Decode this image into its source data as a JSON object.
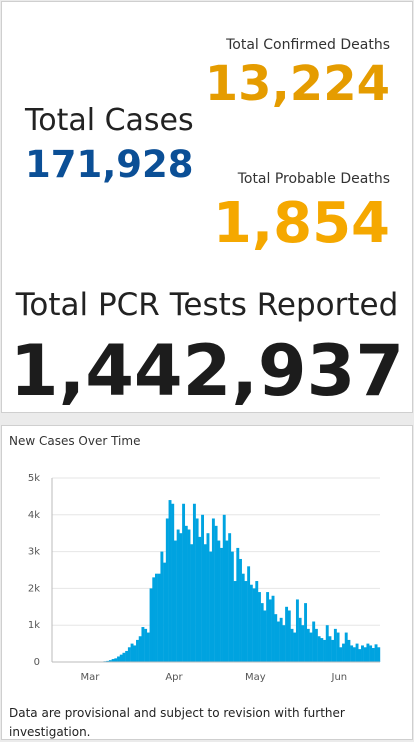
{
  "stats": {
    "confirmed_deaths_label": "Total Confirmed Deaths",
    "confirmed_deaths": "13,224",
    "cases_label": "Total Cases",
    "cases": "171,928",
    "probable_deaths_label": "Total Probable Deaths",
    "probable_deaths": "1,854",
    "tests_label": "Total PCR Tests Reported",
    "tests": "1,442,937"
  },
  "chart_data": {
    "type": "bar",
    "title": "New Cases Over Time",
    "color": "#00a3e0",
    "categories": [
      null,
      null,
      null,
      null,
      null,
      null,
      null,
      null,
      null,
      null,
      null,
      null,
      null,
      null,
      "Mar",
      null,
      null,
      null,
      null,
      null,
      null,
      null,
      null,
      null,
      null,
      null,
      null,
      null,
      null,
      null,
      null,
      null,
      null,
      null,
      null,
      null,
      null,
      null,
      null,
      null,
      null,
      null,
      null,
      null,
      null,
      "Apr",
      null,
      null,
      null,
      null,
      null,
      null,
      null,
      null,
      null,
      null,
      null,
      null,
      null,
      null,
      null,
      null,
      null,
      null,
      null,
      null,
      null,
      null,
      null,
      null,
      null,
      null,
      null,
      null,
      null,
      "May",
      null,
      null,
      null,
      null,
      null,
      null,
      null,
      null,
      null,
      null,
      null,
      null,
      null,
      null,
      null,
      null,
      null,
      null,
      null,
      null,
      null,
      null,
      null,
      null,
      null,
      null,
      null,
      null,
      null,
      null,
      "Jun",
      null,
      null,
      null,
      null,
      null,
      null,
      null,
      null,
      null,
      null,
      null,
      null,
      null,
      null
    ],
    "values": [
      0,
      0,
      0,
      0,
      0,
      0,
      0,
      0,
      0,
      0,
      0,
      0,
      0,
      0,
      0,
      0,
      0,
      5,
      10,
      20,
      30,
      50,
      80,
      100,
      150,
      200,
      250,
      300,
      400,
      500,
      450,
      600,
      700,
      950,
      900,
      800,
      2000,
      2300,
      2400,
      2400,
      3000,
      2700,
      3900,
      4400,
      4300,
      3300,
      3600,
      3500,
      4300,
      3700,
      3600,
      3200,
      4300,
      3900,
      3400,
      4000,
      3200,
      3500,
      3000,
      3900,
      3700,
      3300,
      3100,
      4000,
      3300,
      3500,
      3000,
      2200,
      3100,
      2800,
      2400,
      2200,
      2600,
      2100,
      2000,
      2200,
      1900,
      1600,
      1400,
      1900,
      1700,
      1800,
      1300,
      1100,
      1200,
      1000,
      1500,
      1400,
      900,
      800,
      1700,
      1200,
      1000,
      1600,
      900,
      800,
      1100,
      900,
      700,
      650,
      600,
      1000,
      700,
      600,
      900,
      800,
      400,
      500,
      800,
      600,
      450,
      400,
      500,
      350,
      450,
      400,
      500,
      450,
      380,
      480,
      400
    ],
    "ylim": [
      0,
      5000
    ],
    "yticks": [
      0,
      {
        "value": 1000,
        "label": "1k"
      },
      {
        "value": 2000,
        "label": "2k"
      },
      {
        "value": 3000,
        "label": "3k"
      },
      {
        "value": 4000,
        "label": "4k"
      },
      {
        "value": 5000,
        "label": "5k"
      }
    ],
    "grid": true,
    "note": "Data are provisional and subject to revision with further investigation."
  }
}
